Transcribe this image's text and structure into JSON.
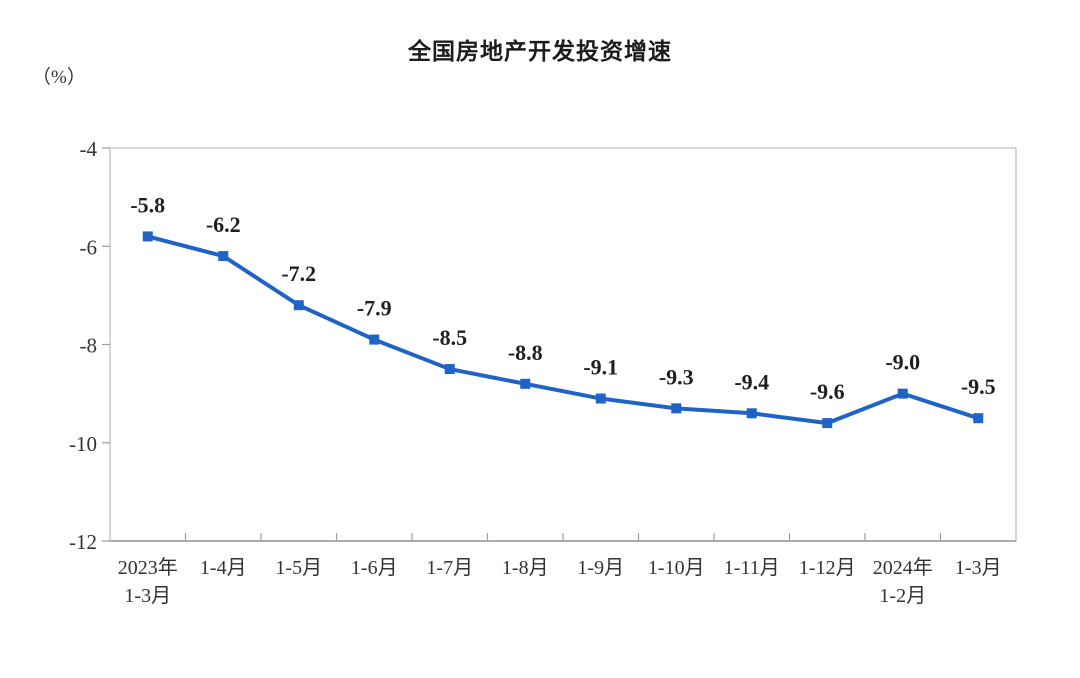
{
  "chart_data": {
    "type": "line",
    "title": "全国房地产开发投资增速",
    "unit_label": "（%）",
    "series_name": "全国房地产开发投资增速",
    "categories": [
      [
        "2023年",
        "1-3月"
      ],
      [
        "1-4月"
      ],
      [
        "1-5月"
      ],
      [
        "1-6月"
      ],
      [
        "1-7月"
      ],
      [
        "1-8月"
      ],
      [
        "1-9月"
      ],
      [
        "1-10月"
      ],
      [
        "1-11月"
      ],
      [
        "1-12月"
      ],
      [
        "2024年",
        "1-2月"
      ],
      [
        "1-3月"
      ]
    ],
    "values": [
      -5.8,
      -6.2,
      -7.2,
      -7.9,
      -8.5,
      -8.8,
      -9.1,
      -9.3,
      -9.4,
      -9.6,
      -9.0,
      -9.5
    ],
    "data_labels": [
      "-5.8",
      "-6.2",
      "-7.2",
      "-7.9",
      "-8.5",
      "-8.8",
      "-9.1",
      "-9.3",
      "-9.4",
      "-9.6",
      "-9.0",
      "-9.5"
    ],
    "xlabel": "",
    "ylabel": "（%）",
    "ylim": [
      -12,
      -4
    ],
    "yticks": [
      -4,
      -6,
      -8,
      -10,
      -12
    ],
    "grid": false,
    "legend": "none",
    "marker": "square",
    "line_color": "#2063c6",
    "frame_color": "#c9c9c9",
    "axis_color": "#9c9c9c",
    "text_color": "#333333"
  }
}
